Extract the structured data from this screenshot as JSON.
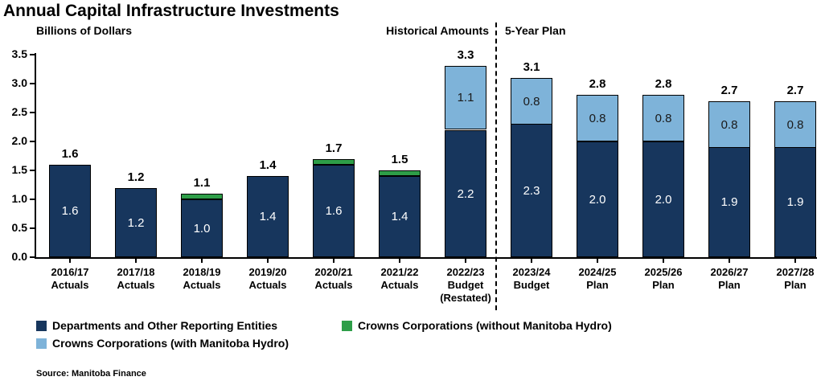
{
  "title": "Annual Capital Infrastructure Investments",
  "axis_label": "Billions of Dollars",
  "section_labels": {
    "historical": "Historical Amounts",
    "plan": "5-Year Plan"
  },
  "source": "Source: Manitoba Finance",
  "colors": {
    "dark_navy": "#17365D",
    "green": "#2E9E48",
    "light_blue": "#7EB3D9",
    "axis": "#000000"
  },
  "legend": [
    {
      "label": "Departments and Other Reporting Entities",
      "color": "#17365D"
    },
    {
      "label": "Crowns Corporations (without Manitoba Hydro)",
      "color": "#2E9E48"
    },
    {
      "label": "Crowns Corporations (with Manitoba Hydro)",
      "color": "#7EB3D9"
    }
  ],
  "chart_data": {
    "type": "bar",
    "stacked": true,
    "title": "Annual Capital Infrastructure Investments",
    "ylabel": "Billions of Dollars",
    "ylim": [
      0,
      3.5
    ],
    "ytick_step": 0.5,
    "yticks": [
      "0.0",
      "0.5",
      "1.0",
      "1.5",
      "2.0",
      "2.5",
      "3.0",
      "3.5"
    ],
    "grid": false,
    "legend_position": "bottom",
    "categories": [
      [
        "2016/17",
        "Actuals"
      ],
      [
        "2017/18",
        "Actuals"
      ],
      [
        "2018/19",
        "Actuals"
      ],
      [
        "2019/20",
        "Actuals"
      ],
      [
        "2020/21",
        "Actuals"
      ],
      [
        "2021/22",
        "Actuals"
      ],
      [
        "2022/23",
        "Budget",
        "(Restated)"
      ],
      [
        "2023/24",
        "Budget"
      ],
      [
        "2024/25",
        "Plan"
      ],
      [
        "2025/26",
        "Plan"
      ],
      [
        "2026/27",
        "Plan"
      ],
      [
        "2027/28",
        "Plan"
      ]
    ],
    "sections": [
      {
        "label": "Historical Amounts",
        "category_indices": [
          0,
          6
        ]
      },
      {
        "label": "5-Year Plan",
        "category_indices": [
          7,
          11
        ]
      }
    ],
    "series": [
      {
        "key": "departments",
        "name": "Departments and Other Reporting Entities",
        "color": "#17365D",
        "label_color": "#ffffff",
        "values": [
          1.6,
          1.2,
          1.0,
          1.4,
          1.6,
          1.4,
          2.2,
          2.3,
          2.0,
          2.0,
          1.9,
          1.9
        ],
        "labels": [
          "1.6",
          "1.2",
          "1.0",
          "1.4",
          "1.6",
          "1.4",
          "2.2",
          "2.3",
          "2.0",
          "2.0",
          "1.9",
          "1.9"
        ]
      },
      {
        "key": "crowns-without-hydro",
        "name": "Crowns Corporations (without Manitoba Hydro)",
        "color": "#2E9E48",
        "label_color": "#ffffff",
        "values": [
          0,
          0,
          0.1,
          0,
          0.1,
          0.1,
          0,
          0,
          0,
          0,
          0,
          0
        ],
        "labels": [
          "",
          "",
          "",
          "",
          "",
          "",
          "",
          "",
          "",
          "",
          "",
          ""
        ]
      },
      {
        "key": "crowns-with-hydro",
        "name": "Crowns Corporations (with Manitoba Hydro)",
        "color": "#7EB3D9",
        "label_color": "#1a1a1a",
        "values": [
          0,
          0,
          0,
          0,
          0,
          0,
          1.1,
          0.8,
          0.8,
          0.8,
          0.8,
          0.8
        ],
        "labels": [
          "",
          "",
          "",
          "",
          "",
          "",
          "1.1",
          "0.8",
          "0.8",
          "0.8",
          "0.8",
          "0.8"
        ]
      }
    ],
    "totals": [
      "1.6",
      "1.2",
      "1.1",
      "1.4",
      "1.7",
      "1.5",
      "3.3",
      "3.1",
      "2.8",
      "2.8",
      "2.7",
      "2.7"
    ]
  }
}
